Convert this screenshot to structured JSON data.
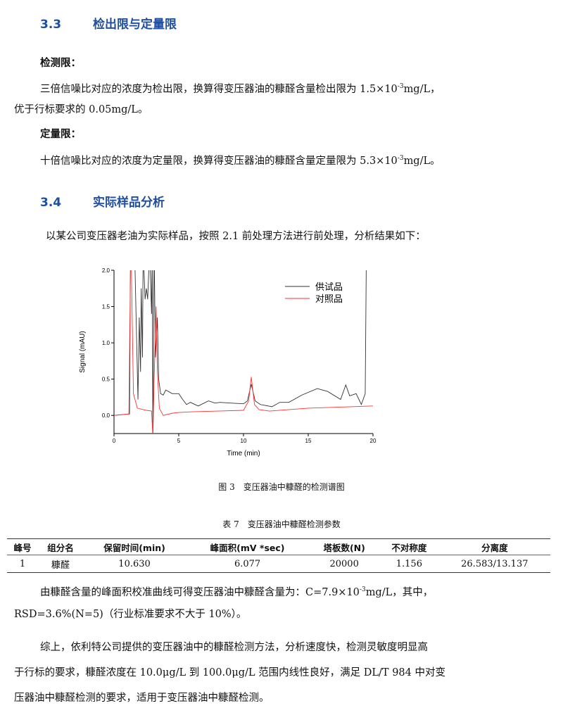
{
  "sec33": {
    "num": "3.3",
    "title": "检出限与定量限"
  },
  "lod": {
    "label": "检测限：",
    "line1a": "三倍信噪比对应的浓度为检出限，换算得变压器油的糠醛含量检出限为 1.5×10",
    "exp": "-3",
    "line1b": "mg/L，",
    "line2": "优于行标要求的 0.05mg/L。"
  },
  "loq": {
    "label": "定量限：",
    "line1a": "十倍信噪比对应的浓度为定量限，换算得变压器油的糠醛含量定量限为 5.3×10",
    "exp": "-3",
    "line1b": "mg/L。"
  },
  "sec34": {
    "num": "3.4",
    "title": "实际样品分析"
  },
  "intro": "以某公司变压器老油为实际样品，按照 2.1 前处理方法进行前处理，分析结果如下：",
  "figure_caption": "图 3　变压器油中糠醛的检测谱图",
  "chart_data": {
    "type": "line",
    "xlabel": "Time (min)",
    "ylabel": "Signal (mAU)",
    "xlim": [
      0,
      20
    ],
    "ylim": [
      -0.25,
      2.0
    ],
    "xticks": [
      "0",
      "5",
      "10",
      "15",
      "20"
    ],
    "yticks": [
      "0.0",
      "0.5",
      "1.0",
      "1.5",
      "2.0"
    ],
    "legend_position": "top-right",
    "series": [
      {
        "name": "供试品",
        "color": "#333333",
        "points": [
          [
            0,
            0
          ],
          [
            1.2,
            0.02
          ],
          [
            1.3,
            3
          ],
          [
            1.5,
            3
          ],
          [
            1.85,
            0.22
          ],
          [
            1.95,
            1.35
          ],
          [
            2.05,
            0.6
          ],
          [
            2.1,
            1.75
          ],
          [
            2.2,
            0.8
          ],
          [
            2.25,
            2.3
          ],
          [
            2.4,
            1.6
          ],
          [
            2.5,
            1.75
          ],
          [
            2.6,
            1.6
          ],
          [
            2.75,
            2.3
          ],
          [
            2.9,
            1.4
          ],
          [
            2.95,
            2.3
          ],
          [
            3.0,
            -0.3
          ],
          [
            3.1,
            2.3
          ],
          [
            3.2,
            0.8
          ],
          [
            3.35,
            1.35
          ],
          [
            3.45,
            0.5
          ],
          [
            3.6,
            0.3
          ],
          [
            3.8,
            0.28
          ],
          [
            4.0,
            0.35
          ],
          [
            4.2,
            0.33
          ],
          [
            4.5,
            0.3
          ],
          [
            5.0,
            0.3
          ],
          [
            5.3,
            0.22
          ],
          [
            5.6,
            0.15
          ],
          [
            5.9,
            0.18
          ],
          [
            6.5,
            0.13
          ],
          [
            7.3,
            0.2
          ],
          [
            7.8,
            0.17
          ],
          [
            8.2,
            0.18
          ],
          [
            9,
            0.17
          ],
          [
            10,
            0.16
          ],
          [
            10.3,
            0.2
          ],
          [
            10.6,
            0.43
          ],
          [
            10.9,
            0.2
          ],
          [
            11.3,
            0.15
          ],
          [
            12.2,
            0.12
          ],
          [
            12.8,
            0.18
          ],
          [
            13.5,
            0.18
          ],
          [
            14.5,
            0.28
          ],
          [
            15.7,
            0.37
          ],
          [
            16.5,
            0.33
          ],
          [
            17.5,
            0.22
          ],
          [
            17.9,
            0.42
          ],
          [
            18.2,
            0.27
          ],
          [
            18.7,
            0.3
          ],
          [
            19.1,
            0.15
          ],
          [
            19.4,
            0.3
          ],
          [
            19.5,
            2.5
          ]
        ]
      },
      {
        "name": "对照品",
        "color": "#ff3333",
        "points": [
          [
            0,
            0
          ],
          [
            1.15,
            0.02
          ],
          [
            1.3,
            2.5
          ],
          [
            1.5,
            0.3
          ],
          [
            1.8,
            0.1
          ],
          [
            2.5,
            0.07
          ],
          [
            2.9,
            0.06
          ],
          [
            3.0,
            -0.3
          ],
          [
            3.1,
            0.5
          ],
          [
            3.25,
            1.5
          ],
          [
            3.35,
            0.6
          ],
          [
            3.5,
            0.1
          ],
          [
            3.8,
            0.0
          ],
          [
            4.5,
            0.03
          ],
          [
            5,
            0.04
          ],
          [
            6,
            0.05
          ],
          [
            8,
            0.06
          ],
          [
            10,
            0.07
          ],
          [
            10.4,
            0.2
          ],
          [
            10.6,
            0.53
          ],
          [
            10.85,
            0.15
          ],
          [
            11.2,
            0.08
          ],
          [
            12,
            0.06
          ],
          [
            15,
            0.1
          ],
          [
            20,
            0.13
          ]
        ]
      }
    ]
  },
  "table_caption": "表 7　变压器油中糠醛检测参数",
  "table": {
    "headers": [
      "峰号",
      "组分名",
      "保留时间(min)",
      "峰面积(mV *sec)",
      "塔板数(N)",
      "不对称度",
      "分离度"
    ],
    "rows": [
      [
        "1",
        "糠醛",
        "10.630",
        "6.077",
        "20000",
        "1.156",
        "26.583/13.137"
      ]
    ]
  },
  "result": {
    "line1a": "由糠醛含量的峰面积校准曲线可得变压器油中糠醛含量为：C=7.9×10",
    "exp": "-3",
    "line1b": "mg/L，其中，",
    "line2": "RSD=3.6%(N=5)（行业标准要求不大于 10%）。"
  },
  "summary": {
    "line1": "综上，依利特公司提供的变压器油中的糠醛检测方法，分析速度快，检测灵敏度明显高",
    "line2": "于行标的要求，糠醛浓度在 10.0μg/L 到 100.0μg/L 范围内线性良好，满足 DL/T 984 中对变",
    "line3": "压器油中糠醛检测的要求，适用于变压器油中糠醛检测。"
  }
}
